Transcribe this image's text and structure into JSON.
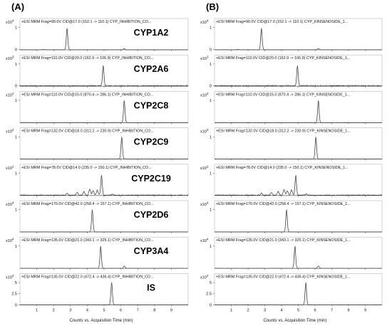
{
  "panels": [
    {
      "label": "(A)",
      "file_label": "CYP_INHIBITION_CO...",
      "ion": "+ESI MRM"
    },
    {
      "label": "(B)",
      "file_label": "CYP_KINSENOSIDE_1...",
      "ion": "+ESI MRM"
    }
  ],
  "x_axis": {
    "label": "Counts vs. Acquisition Time (min)",
    "ticks": [
      "1",
      "2",
      "3",
      "4",
      "5",
      "6",
      "7",
      "8",
      "9"
    ]
  },
  "chart_data": {
    "type": "line",
    "xlabel": "Counts vs. Acquisition Time (min)",
    "xlim": [
      0,
      10
    ],
    "line_color": "#333333",
    "traces": [
      {
        "name": "CYP1A2",
        "exp": "4",
        "header": "Frag=90.0V  CID@17.0  (152.1 -> 110.1)",
        "yticks": [
          "1",
          "0"
        ],
        "yticks_b": [
          "1",
          "0"
        ],
        "peaks": [
          {
            "x": 2.8,
            "y": 0.92
          }
        ],
        "minor": [
          [
            1.4,
            0.015
          ],
          [
            6.2,
            0.05
          ]
        ],
        "noise": 0.003
      },
      {
        "name": "CYP2A6",
        "exp": "3",
        "header": "Frag=110.0V  CID@20.0  (162.9 -> 106.9)",
        "yticks": [
          "1",
          "0"
        ],
        "yticks_b": [
          "1",
          "0"
        ],
        "peaks": [
          {
            "x": 4.95,
            "y": 0.85
          }
        ],
        "minor": [],
        "noise": 0.02
      },
      {
        "name": "CYP2C8",
        "exp": "2",
        "header": "Frag=110.0V  CID@15.0  (870.4 -> 286.1)",
        "yticks": [
          "1"
        ],
        "yticks_b": [
          "1"
        ],
        "peaks": [
          {
            "x": 6.2,
            "y": 0.95
          }
        ],
        "minor": [],
        "noise": 0.002
      },
      {
        "name": "CYP2C9",
        "exp": "3",
        "header": "Frag=132.0V  CID@18.0  (312.2 -> 230.9)",
        "yticks": [
          "1"
        ],
        "yticks_b": [
          "1"
        ],
        "peaks": [
          {
            "x": 6.05,
            "y": 0.95
          }
        ],
        "minor": [],
        "noise": 0.002
      },
      {
        "name": "CYP2C19",
        "exp": "2",
        "header": "Frag=78.0V  CID@14.0  (235.0 -> 150.1)",
        "yticks": [
          "1"
        ],
        "yticks_b": [
          "1"
        ],
        "peaks": [
          {
            "x": 4.85,
            "y": 0.85
          }
        ],
        "minor": [
          [
            2.8,
            0.08
          ],
          [
            3.4,
            0.12
          ],
          [
            3.8,
            0.16
          ],
          [
            4.15,
            0.25
          ],
          [
            4.35,
            0.18
          ],
          [
            4.6,
            0.22
          ],
          [
            5.5,
            0.05
          ]
        ],
        "noise": 0.015
      },
      {
        "name": "CYP2D6",
        "exp": "4",
        "header": "Frag=170.0V  CID@42.0  (258.4 -> 157.1)",
        "yticks": [
          "1"
        ],
        "yticks_b": [
          "1"
        ],
        "peaks": [
          {
            "x": 4.3,
            "y": 0.95
          }
        ],
        "minor": [],
        "noise": 0.002
      },
      {
        "name": "CYP3A4",
        "exp": "4",
        "header": "Frag=135.0V  CID@21.0  (343.1 -> 325.1)",
        "yticks": [
          "1"
        ],
        "yticks_b": [
          "1"
        ],
        "peaks": [
          {
            "x": 4.8,
            "y": 0.95
          }
        ],
        "minor": [
          [
            6.2,
            0.1
          ]
        ],
        "noise": 0.003
      },
      {
        "name": "IS",
        "exp": "4",
        "header": "Frag=135.0V  CID@22.0  (472.4 -> 436.4)",
        "yticks": [
          "5",
          "2.5",
          "0"
        ],
        "yticks_b": [
          "5",
          "2.5",
          "0"
        ],
        "peaks": [
          {
            "x": 5.45,
            "y": 0.95
          }
        ],
        "minor": [],
        "noise": 0.002
      }
    ]
  }
}
